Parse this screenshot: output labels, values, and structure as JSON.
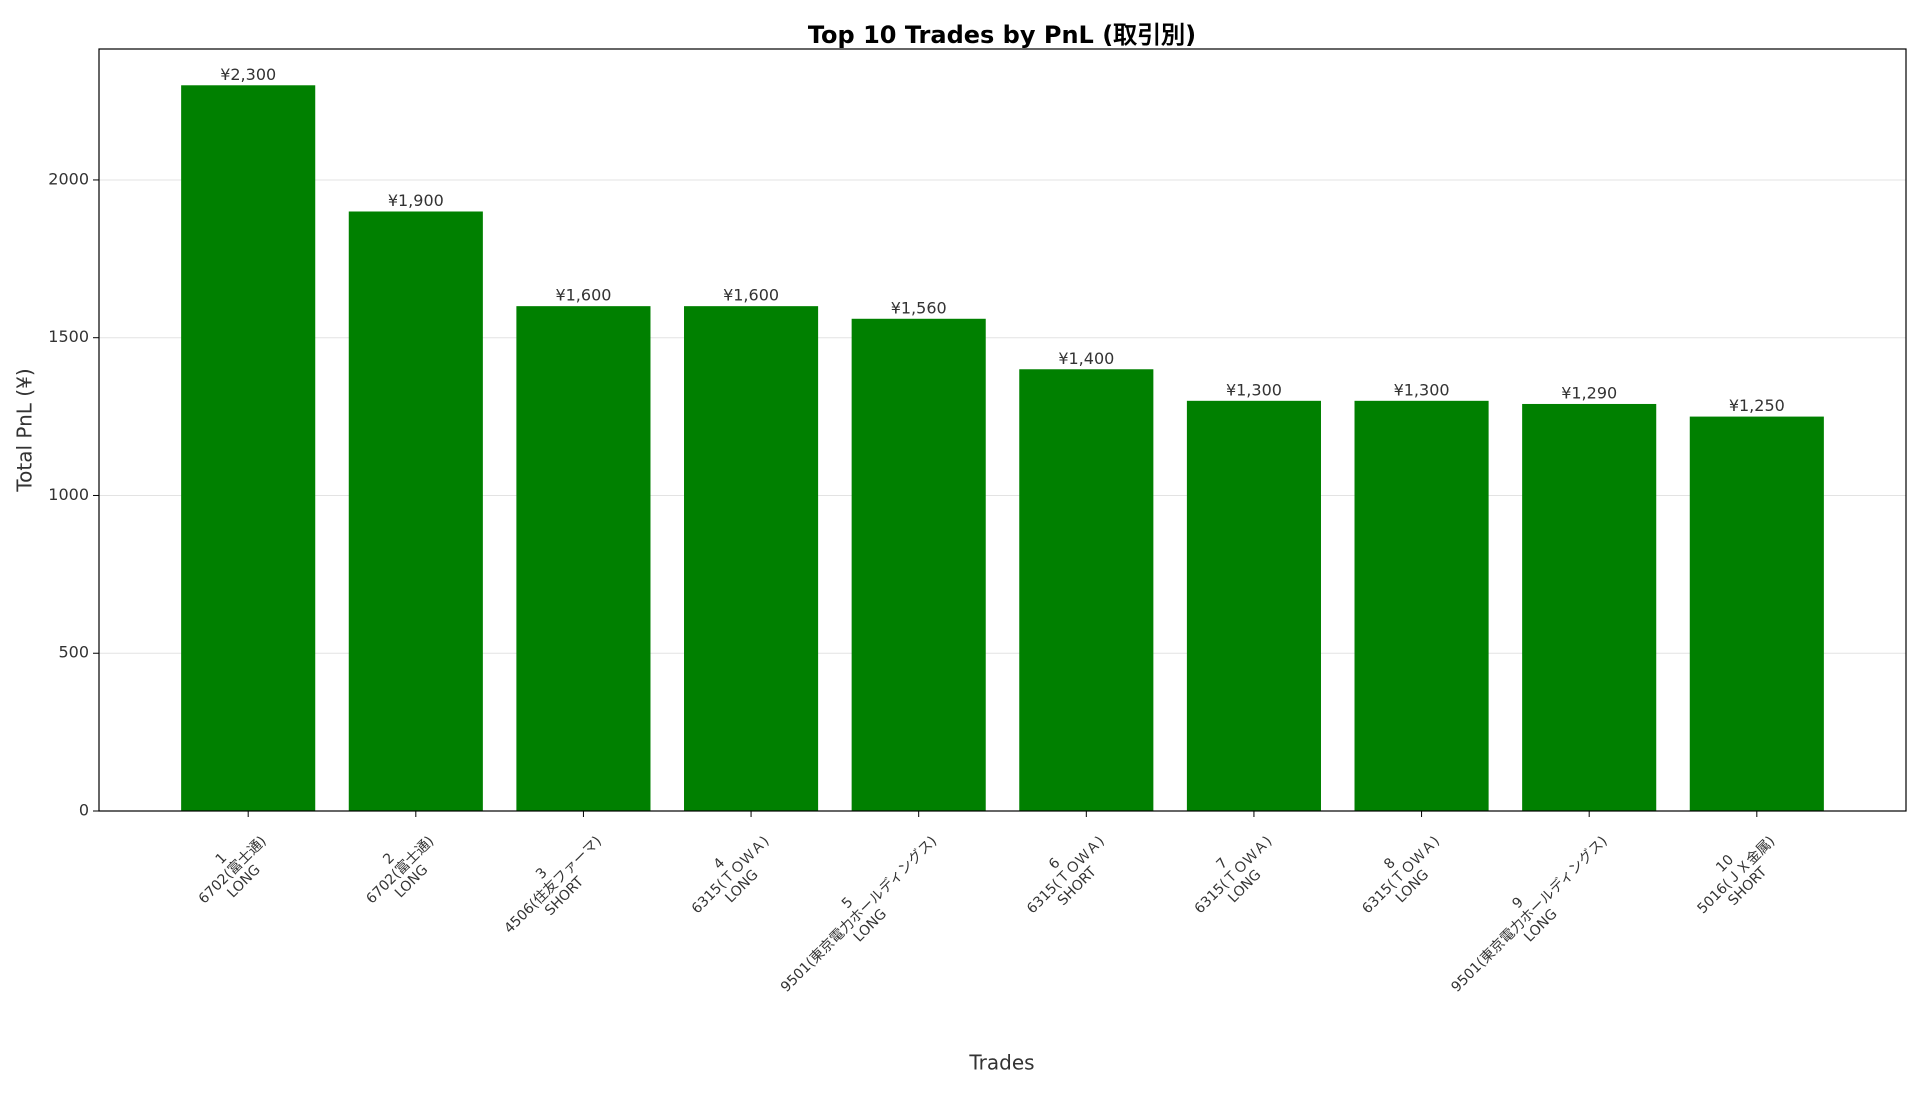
{
  "chart_data": {
    "type": "bar",
    "title": "Top 10 Trades by PnL (取引別)",
    "x_label": "Trades",
    "y_label": "Total PnL (¥)",
    "categories": [
      [
        "1",
        "6702(富士通)",
        "LONG"
      ],
      [
        "2",
        "6702(富士通)",
        "LONG"
      ],
      [
        "3",
        "4506(住友ファーマ)",
        "SHORT"
      ],
      [
        "4",
        "6315(ＴＯＷＡ)",
        "LONG"
      ],
      [
        "5",
        "9501(東京電力ホールディングス)",
        "LONG"
      ],
      [
        "6",
        "6315(ＴＯＷＡ)",
        "SHORT"
      ],
      [
        "7",
        "6315(ＴＯＷＡ)",
        "LONG"
      ],
      [
        "8",
        "6315(ＴＯＷＡ)",
        "LONG"
      ],
      [
        "9",
        "9501(東京電力ホールディングス)",
        "LONG"
      ],
      [
        "10",
        "5016(ＪＸ金属)",
        "SHORT"
      ]
    ],
    "values": [
      2300,
      1900,
      1600,
      1600,
      1560,
      1400,
      1300,
      1300,
      1290,
      1250
    ],
    "value_labels": [
      "¥2,300",
      "¥1,900",
      "¥1,600",
      "¥1,600",
      "¥1,560",
      "¥1,400",
      "¥1,300",
      "¥1,300",
      "¥1,290",
      "¥1,250"
    ],
    "color": "#008000",
    "ylim": [
      0,
      2415
    ],
    "yticks": [
      0,
      500,
      1000,
      1500,
      2000
    ],
    "grid": true
  }
}
